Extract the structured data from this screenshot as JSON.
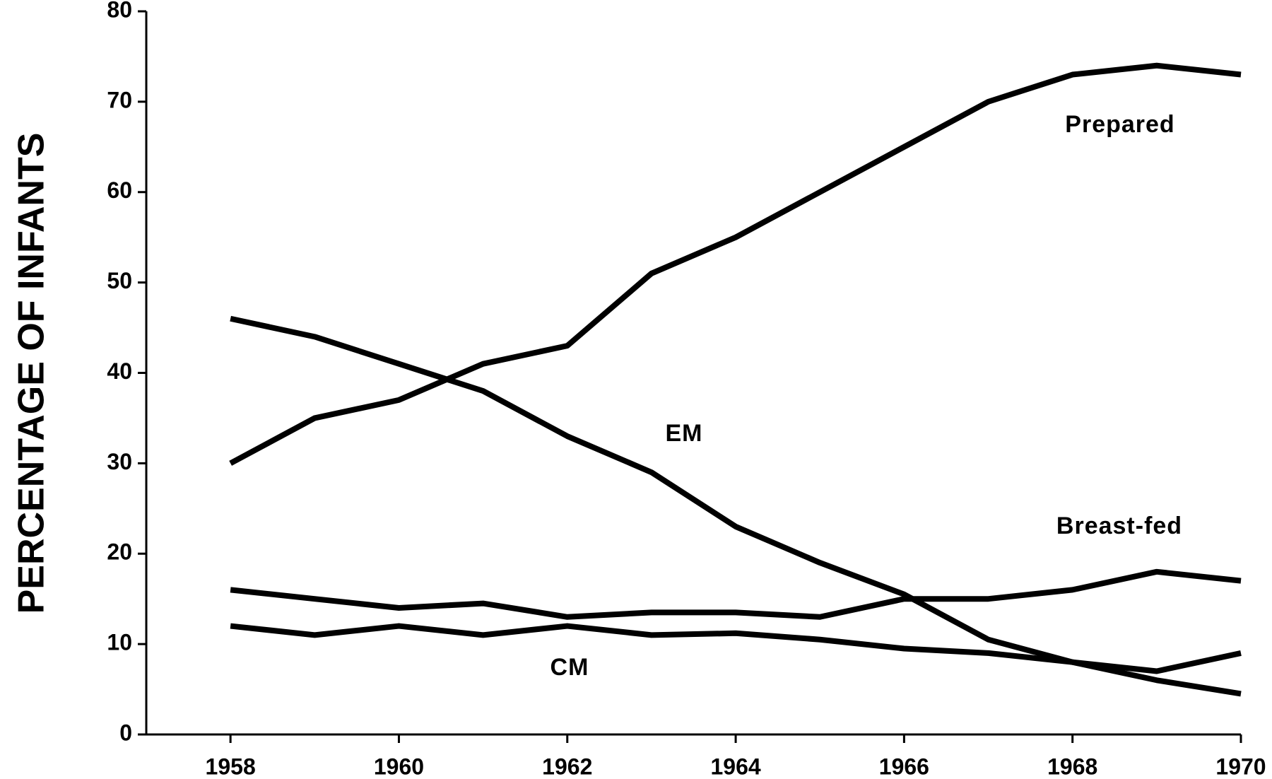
{
  "chart_data": {
    "type": "line",
    "y_label": "PERCENTAGE OF INFANTS",
    "x": [
      1958,
      1959,
      1960,
      1961,
      1962,
      1963,
      1964,
      1965,
      1966,
      1967,
      1968,
      1969,
      1970
    ],
    "series": [
      {
        "name": "Prepared",
        "color": "#000000",
        "values": [
          30,
          35,
          37,
          41,
          43,
          51,
          55,
          60,
          65,
          70,
          73,
          74,
          73
        ]
      },
      {
        "name": "EM",
        "color": "#000000",
        "values": [
          46,
          44,
          41,
          38,
          33,
          29,
          23,
          19,
          15.5,
          10.5,
          8,
          6,
          4.5
        ]
      },
      {
        "name": "Breast-fed",
        "color": "#000000",
        "values": [
          16,
          15,
          14,
          14.5,
          13,
          13.5,
          13.5,
          13,
          15,
          15,
          16,
          18,
          17
        ]
      },
      {
        "name": "CM",
        "color": "#000000",
        "values": [
          12,
          11,
          12,
          11,
          12,
          11,
          11.2,
          10.5,
          9.5,
          9,
          8,
          7,
          9
        ]
      }
    ],
    "xlim": [
      1957,
      1970
    ],
    "xticks": [
      1958,
      1960,
      1962,
      1964,
      1966,
      1968,
      1970
    ],
    "ylim": [
      0,
      80
    ],
    "yticks": [
      0,
      10,
      20,
      30,
      40,
      50,
      60,
      70,
      80
    ],
    "grid": false
  }
}
